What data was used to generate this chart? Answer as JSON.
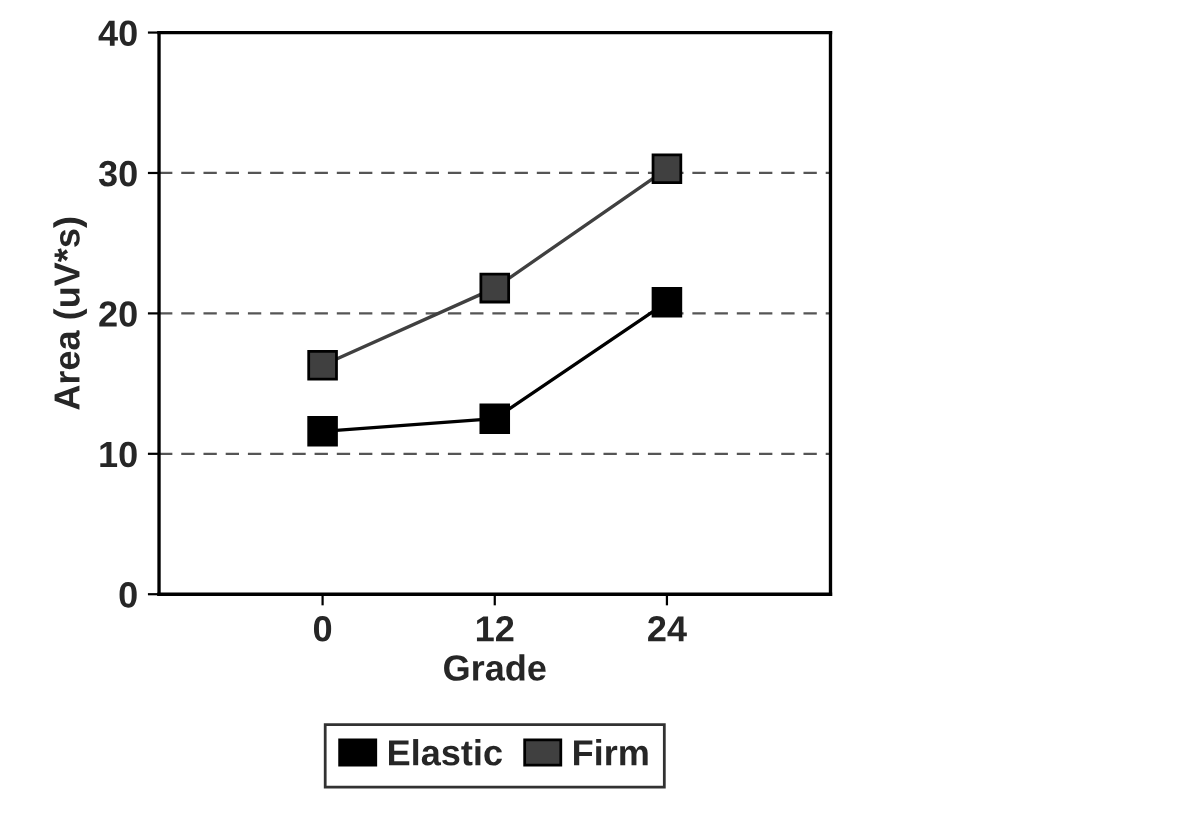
{
  "chart_data": {
    "type": "line",
    "xlabel": "Grade",
    "ylabel": "Area (uV*s)",
    "categories": [
      "0",
      "12",
      "24"
    ],
    "series": [
      {
        "name": "Elastic",
        "color": "#000000",
        "values": [
          11.6,
          12.5,
          20.8
        ]
      },
      {
        "name": "Firm",
        "color": "#404040",
        "values": [
          16.3,
          21.8,
          30.3
        ]
      }
    ],
    "ylim": [
      0,
      40
    ],
    "yticks": [
      0,
      10,
      20,
      30,
      40
    ],
    "grid": "y",
    "legend": "bottom",
    "marker": "square",
    "line_style": "solid"
  }
}
